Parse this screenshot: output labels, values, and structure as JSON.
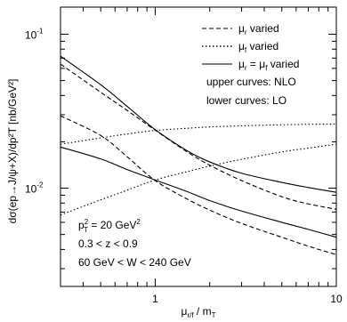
{
  "chart_data": {
    "type": "line",
    "xlabel": {
      "main": "μ",
      "sub": "r/f",
      "rest": " / m",
      "sub2": "T"
    },
    "ylabel": "dσ(ep→J/ψ+X)/dp²T [nb/GeV²]",
    "xlim": [
      0.3,
      10
    ],
    "ylim": [
      0.0023,
      0.15
    ],
    "x_scale": "log",
    "y_scale": "log",
    "grid": false,
    "x_ticks": [
      {
        "value": 1,
        "label": "1"
      },
      {
        "value": 10,
        "label": "10"
      }
    ],
    "y_ticks": [
      {
        "value": 0.1,
        "base": "10",
        "exp": "-1"
      },
      {
        "value": 0.01,
        "base": "10",
        "exp": "-2"
      }
    ],
    "legend": {
      "placement": "top-right",
      "entries": [
        {
          "style": "dashed",
          "label_main": "μ",
          "label_sub": "r",
          "label_rest": " varied"
        },
        {
          "style": "dotted",
          "label_main": "μ",
          "label_sub": "f",
          "label_rest": " varied"
        },
        {
          "style": "solid",
          "label_main": "μ",
          "label_sub": "r",
          "label_mid": " = μ",
          "label_sub2": "f",
          "label_rest": " varied"
        }
      ],
      "notes": [
        "upper curves: NLO",
        "lower curves: LO"
      ]
    },
    "annotations": [
      {
        "type": "pt2",
        "main": "p",
        "sup": "2",
        "sub": "T",
        "rest": " = 20 GeV",
        "rest_sup": "2"
      },
      {
        "type": "plain",
        "text": "0.3 < z < 0.9"
      },
      {
        "type": "plain",
        "text": "60 GeV < W < 240 GeV"
      }
    ],
    "series": [
      {
        "order": "NLO",
        "style": "solid",
        "x": [
          0.3,
          0.5,
          0.7,
          1,
          1.5,
          2,
          3,
          5,
          7,
          10
        ],
        "values": [
          0.072,
          0.047,
          0.034,
          0.024,
          0.0175,
          0.0148,
          0.0125,
          0.0109,
          0.0101,
          0.0094
        ]
      },
      {
        "order": "NLO",
        "style": "dashed",
        "x": [
          0.3,
          0.5,
          0.7,
          1,
          1.5,
          2,
          3,
          5,
          7,
          10
        ],
        "values": [
          0.064,
          0.042,
          0.032,
          0.0238,
          0.0172,
          0.0141,
          0.0112,
          0.0088,
          0.0079,
          0.0073
        ]
      },
      {
        "order": "NLO",
        "style": "dotted",
        "x": [
          0.3,
          0.5,
          0.7,
          1,
          1.5,
          2,
          3,
          5,
          7,
          10
        ],
        "values": [
          0.0193,
          0.0212,
          0.0225,
          0.0237,
          0.0245,
          0.025,
          0.0254,
          0.0258,
          0.026,
          0.0261
        ]
      },
      {
        "order": "LO",
        "style": "solid",
        "x": [
          0.3,
          0.5,
          0.7,
          1,
          1.5,
          2,
          3,
          5,
          7,
          10
        ],
        "values": [
          0.0185,
          0.0155,
          0.0132,
          0.0113,
          0.0095,
          0.0083,
          0.0071,
          0.006,
          0.0054,
          0.0048
        ]
      },
      {
        "order": "LO",
        "style": "dashed",
        "x": [
          0.3,
          0.5,
          0.7,
          1,
          1.5,
          2,
          3,
          5,
          7,
          10
        ],
        "values": [
          0.0295,
          0.022,
          0.016,
          0.0112,
          0.0085,
          0.0072,
          0.0059,
          0.0048,
          0.0042,
          0.0037
        ]
      },
      {
        "order": "LO",
        "style": "dotted",
        "x": [
          0.3,
          0.5,
          0.7,
          1,
          1.5,
          2,
          3,
          5,
          7,
          10
        ],
        "values": [
          0.0067,
          0.0084,
          0.0097,
          0.0113,
          0.0128,
          0.0139,
          0.0154,
          0.0172,
          0.0182,
          0.0193
        ]
      }
    ]
  }
}
